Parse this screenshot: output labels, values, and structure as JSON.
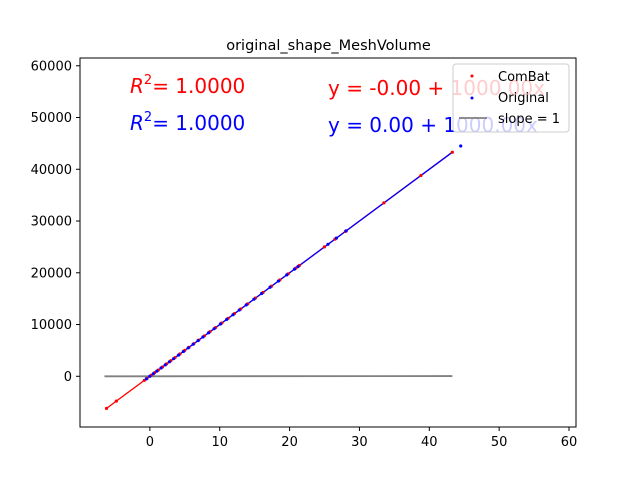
{
  "chart_data": {
    "type": "scatter",
    "title": "original_shape_MeshVolume",
    "xlabel": "",
    "ylabel": "",
    "xlim": [
      -10,
      61
    ],
    "ylim": [
      -9800,
      61500
    ],
    "xticks": [
      0,
      10,
      20,
      30,
      40,
      50,
      60
    ],
    "yticks": [
      0,
      10000,
      20000,
      30000,
      40000,
      50000,
      60000
    ],
    "grid": false,
    "legend_placement": "top-right",
    "series": [
      {
        "name": "ComBat",
        "color": "#ff0000",
        "marker": "point",
        "x": [
          -6.2,
          -4.8,
          -0.8,
          -0.4,
          0.2,
          0.7,
          1.2,
          1.8,
          2.4,
          3.0,
          3.6,
          4.3,
          5.0,
          5.6,
          6.3,
          7.0,
          7.8,
          8.6,
          9.4,
          10.3,
          11.2,
          12.1,
          13.0,
          14.0,
          15.1,
          16.2,
          17.4,
          18.6,
          19.8,
          20.9,
          21.4,
          25.0,
          26.5,
          28.0,
          33.5,
          38.8,
          43.3
        ],
        "y": [
          -6200,
          -4800,
          -800,
          -400,
          200,
          700,
          1200,
          1800,
          2400,
          3000,
          3600,
          4300,
          5000,
          5600,
          6300,
          7000,
          7800,
          8600,
          9400,
          10300,
          11200,
          12100,
          13000,
          14000,
          15100,
          16200,
          17400,
          18600,
          19800,
          20900,
          21400,
          25000,
          26500,
          28000,
          33500,
          38800,
          43300
        ]
      },
      {
        "name": "Original",
        "color": "#0000ff",
        "marker": "point",
        "x": [
          -0.5,
          0.0,
          0.5,
          1.0,
          1.6,
          2.2,
          2.8,
          3.4,
          4.1,
          4.8,
          5.5,
          6.2,
          6.9,
          7.6,
          8.4,
          9.2,
          10.1,
          11.0,
          11.9,
          12.8,
          13.8,
          14.9,
          16.0,
          17.2,
          18.4,
          19.6,
          20.7,
          21.2,
          25.5,
          26.7,
          28.1,
          44.5
        ],
        "y": [
          -500,
          0,
          500,
          1000,
          1600,
          2200,
          2800,
          3400,
          4100,
          4800,
          5500,
          6200,
          6900,
          7600,
          8400,
          9200,
          10100,
          11000,
          11900,
          12800,
          13800,
          14900,
          16000,
          17200,
          18400,
          19600,
          20700,
          21200,
          25500,
          26700,
          28100,
          44500
        ]
      }
    ],
    "fit_lines": [
      {
        "name": "ComBat",
        "color": "#ff0000",
        "x": [
          -6.2,
          43.3
        ],
        "intercept": -0.0,
        "slope": 1000.0
      },
      {
        "name": "Original",
        "color": "#0000ff",
        "x": [
          -0.5,
          43.3
        ],
        "intercept": 0.0,
        "slope": 1000.0
      }
    ],
    "reference_line": {
      "name": "slope = 1",
      "color": "#808080",
      "x": [
        -6.5,
        43.3
      ],
      "slope": 1,
      "intercept": 0
    },
    "annotations": [
      {
        "text": "y = -0.00 + 1000.00x",
        "color": "#ff0000"
      },
      {
        "text": "y = 0.00 + 1000.00x",
        "color": "#0000ff"
      }
    ],
    "r2_annotations": [
      {
        "label": "R",
        "sup": "2",
        "value": "= 1.0000",
        "color": "#ff0000"
      },
      {
        "label": "R",
        "sup": "2",
        "value": "= 1.0000",
        "color": "#0000ff"
      }
    ]
  }
}
